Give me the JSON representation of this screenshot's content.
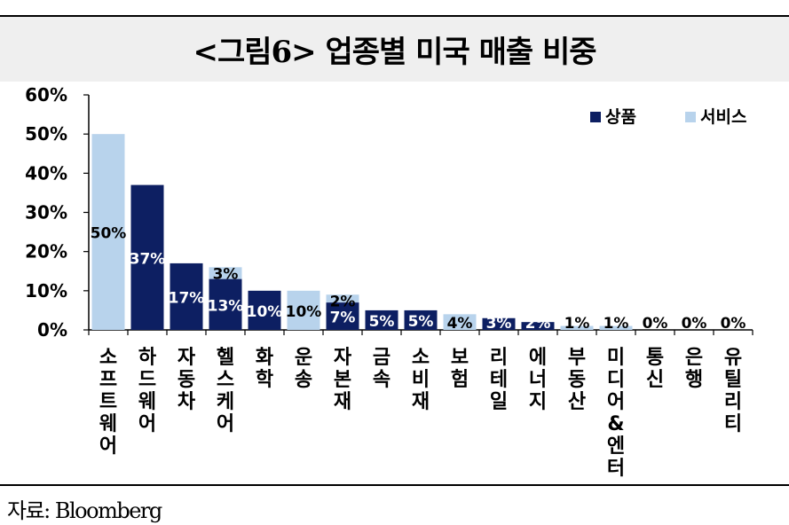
{
  "title": "<그림6> 업종별 미국 매출 비중",
  "source": "자료: Bloomberg",
  "colors": {
    "goods": "#0d1f62",
    "services": "#b8d3ec",
    "axis": "#000000"
  },
  "chart_data": {
    "type": "bar",
    "stacked": true,
    "categories": [
      "소프트웨어",
      "하드웨어",
      "자동차",
      "헬스케어",
      "화학",
      "운송",
      "자본재",
      "금속",
      "소비재",
      "보험",
      "리테일",
      "에너지",
      "부동산",
      "미디어&엔터",
      "통신",
      "은행",
      "유틸리티"
    ],
    "series": [
      {
        "name": "상품",
        "color": "#0d1f62",
        "values": [
          0,
          37,
          17,
          13,
          10,
          0,
          7,
          5,
          5,
          0,
          3,
          2,
          0,
          0,
          0,
          0,
          0
        ]
      },
      {
        "name": "서비스",
        "color": "#b8d3ec",
        "values": [
          50,
          0,
          0,
          3,
          0,
          10,
          2,
          0,
          0,
          4,
          0,
          0,
          1,
          1,
          0,
          0,
          0
        ]
      }
    ],
    "data_labels": [
      [
        {
          "text": "50%"
        }
      ],
      [
        {
          "text": "37%"
        }
      ],
      [
        {
          "text": "17%"
        }
      ],
      [
        {
          "text": "13%"
        },
        {
          "text": "3%"
        }
      ],
      [
        {
          "text": "10%"
        }
      ],
      [
        {
          "text": "10%"
        }
      ],
      [
        {
          "text": "7%"
        },
        {
          "text": "2%"
        }
      ],
      [
        {
          "text": "5%"
        }
      ],
      [
        {
          "text": "5%"
        }
      ],
      [
        {
          "text": "4%"
        }
      ],
      [
        {
          "text": "3%"
        }
      ],
      [
        {
          "text": "2%"
        }
      ],
      [
        {
          "text": "1%"
        }
      ],
      [
        {
          "text": "1%"
        }
      ],
      [
        {
          "text": "0%"
        }
      ],
      [
        {
          "text": "0%"
        }
      ],
      [
        {
          "text": "0%"
        }
      ]
    ],
    "yticks": [
      "0%",
      "10%",
      "20%",
      "30%",
      "40%",
      "50%",
      "60%"
    ],
    "ylim": [
      0,
      60
    ],
    "legend_position": "top-right",
    "grid": false
  }
}
